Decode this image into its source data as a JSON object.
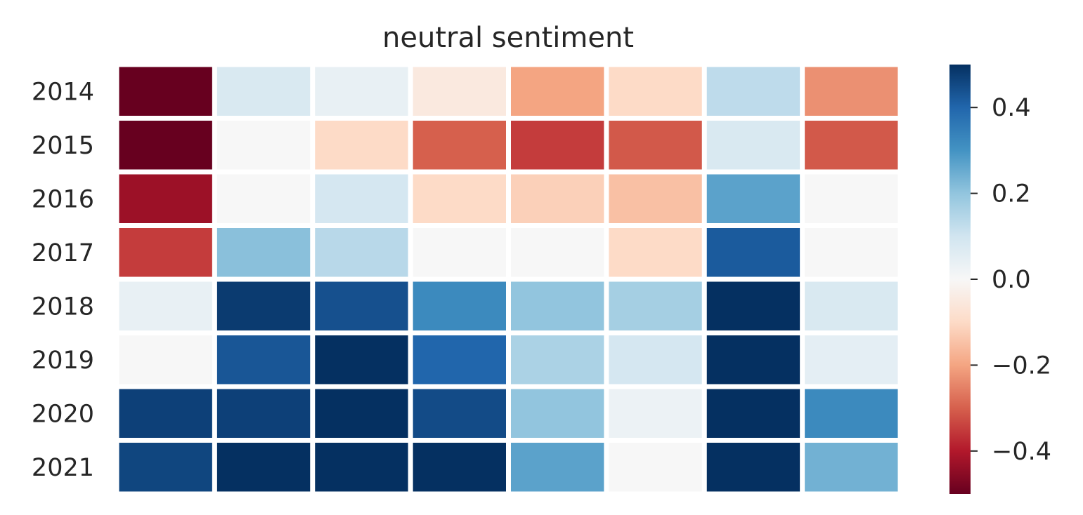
{
  "chart_data": {
    "type": "heatmap",
    "title": "neutral sentiment",
    "xlabel": "",
    "ylabel": "",
    "rows": [
      "2014",
      "2015",
      "2016",
      "2017",
      "2018",
      "2019",
      "2020",
      "2021"
    ],
    "columns": [
      "",
      "",
      "",
      "",
      "",
      "",
      "",
      ""
    ],
    "values": [
      [
        -0.5,
        0.08,
        0.04,
        -0.05,
        -0.2,
        -0.1,
        0.13,
        -0.23
      ],
      [
        -0.5,
        0.0,
        -0.1,
        -0.3,
        -0.35,
        -0.31,
        0.08,
        -0.31
      ],
      [
        -0.43,
        0.0,
        0.09,
        -0.1,
        -0.12,
        -0.15,
        0.27,
        0.0
      ],
      [
        -0.35,
        0.21,
        0.14,
        0.0,
        0.0,
        -0.1,
        0.42,
        0.0
      ],
      [
        0.04,
        0.48,
        0.44,
        0.32,
        0.2,
        0.17,
        0.5,
        0.08
      ],
      [
        0.0,
        0.43,
        0.5,
        0.4,
        0.16,
        0.09,
        0.5,
        0.05
      ],
      [
        0.47,
        0.47,
        0.5,
        0.45,
        0.2,
        0.03,
        0.5,
        0.32
      ],
      [
        0.46,
        0.5,
        0.5,
        0.5,
        0.27,
        0.0,
        0.5,
        0.24
      ]
    ],
    "colorbar": {
      "colormap": "RdBu",
      "vmin": -0.5,
      "vmax": 0.5,
      "ticks": [
        0.4,
        0.2,
        0.0,
        -0.2,
        -0.4
      ],
      "tick_labels": [
        "0.4",
        "0.2",
        "0.0",
        "−0.2",
        "−0.4"
      ]
    },
    "grid": false,
    "legend": "colorbar-right"
  }
}
